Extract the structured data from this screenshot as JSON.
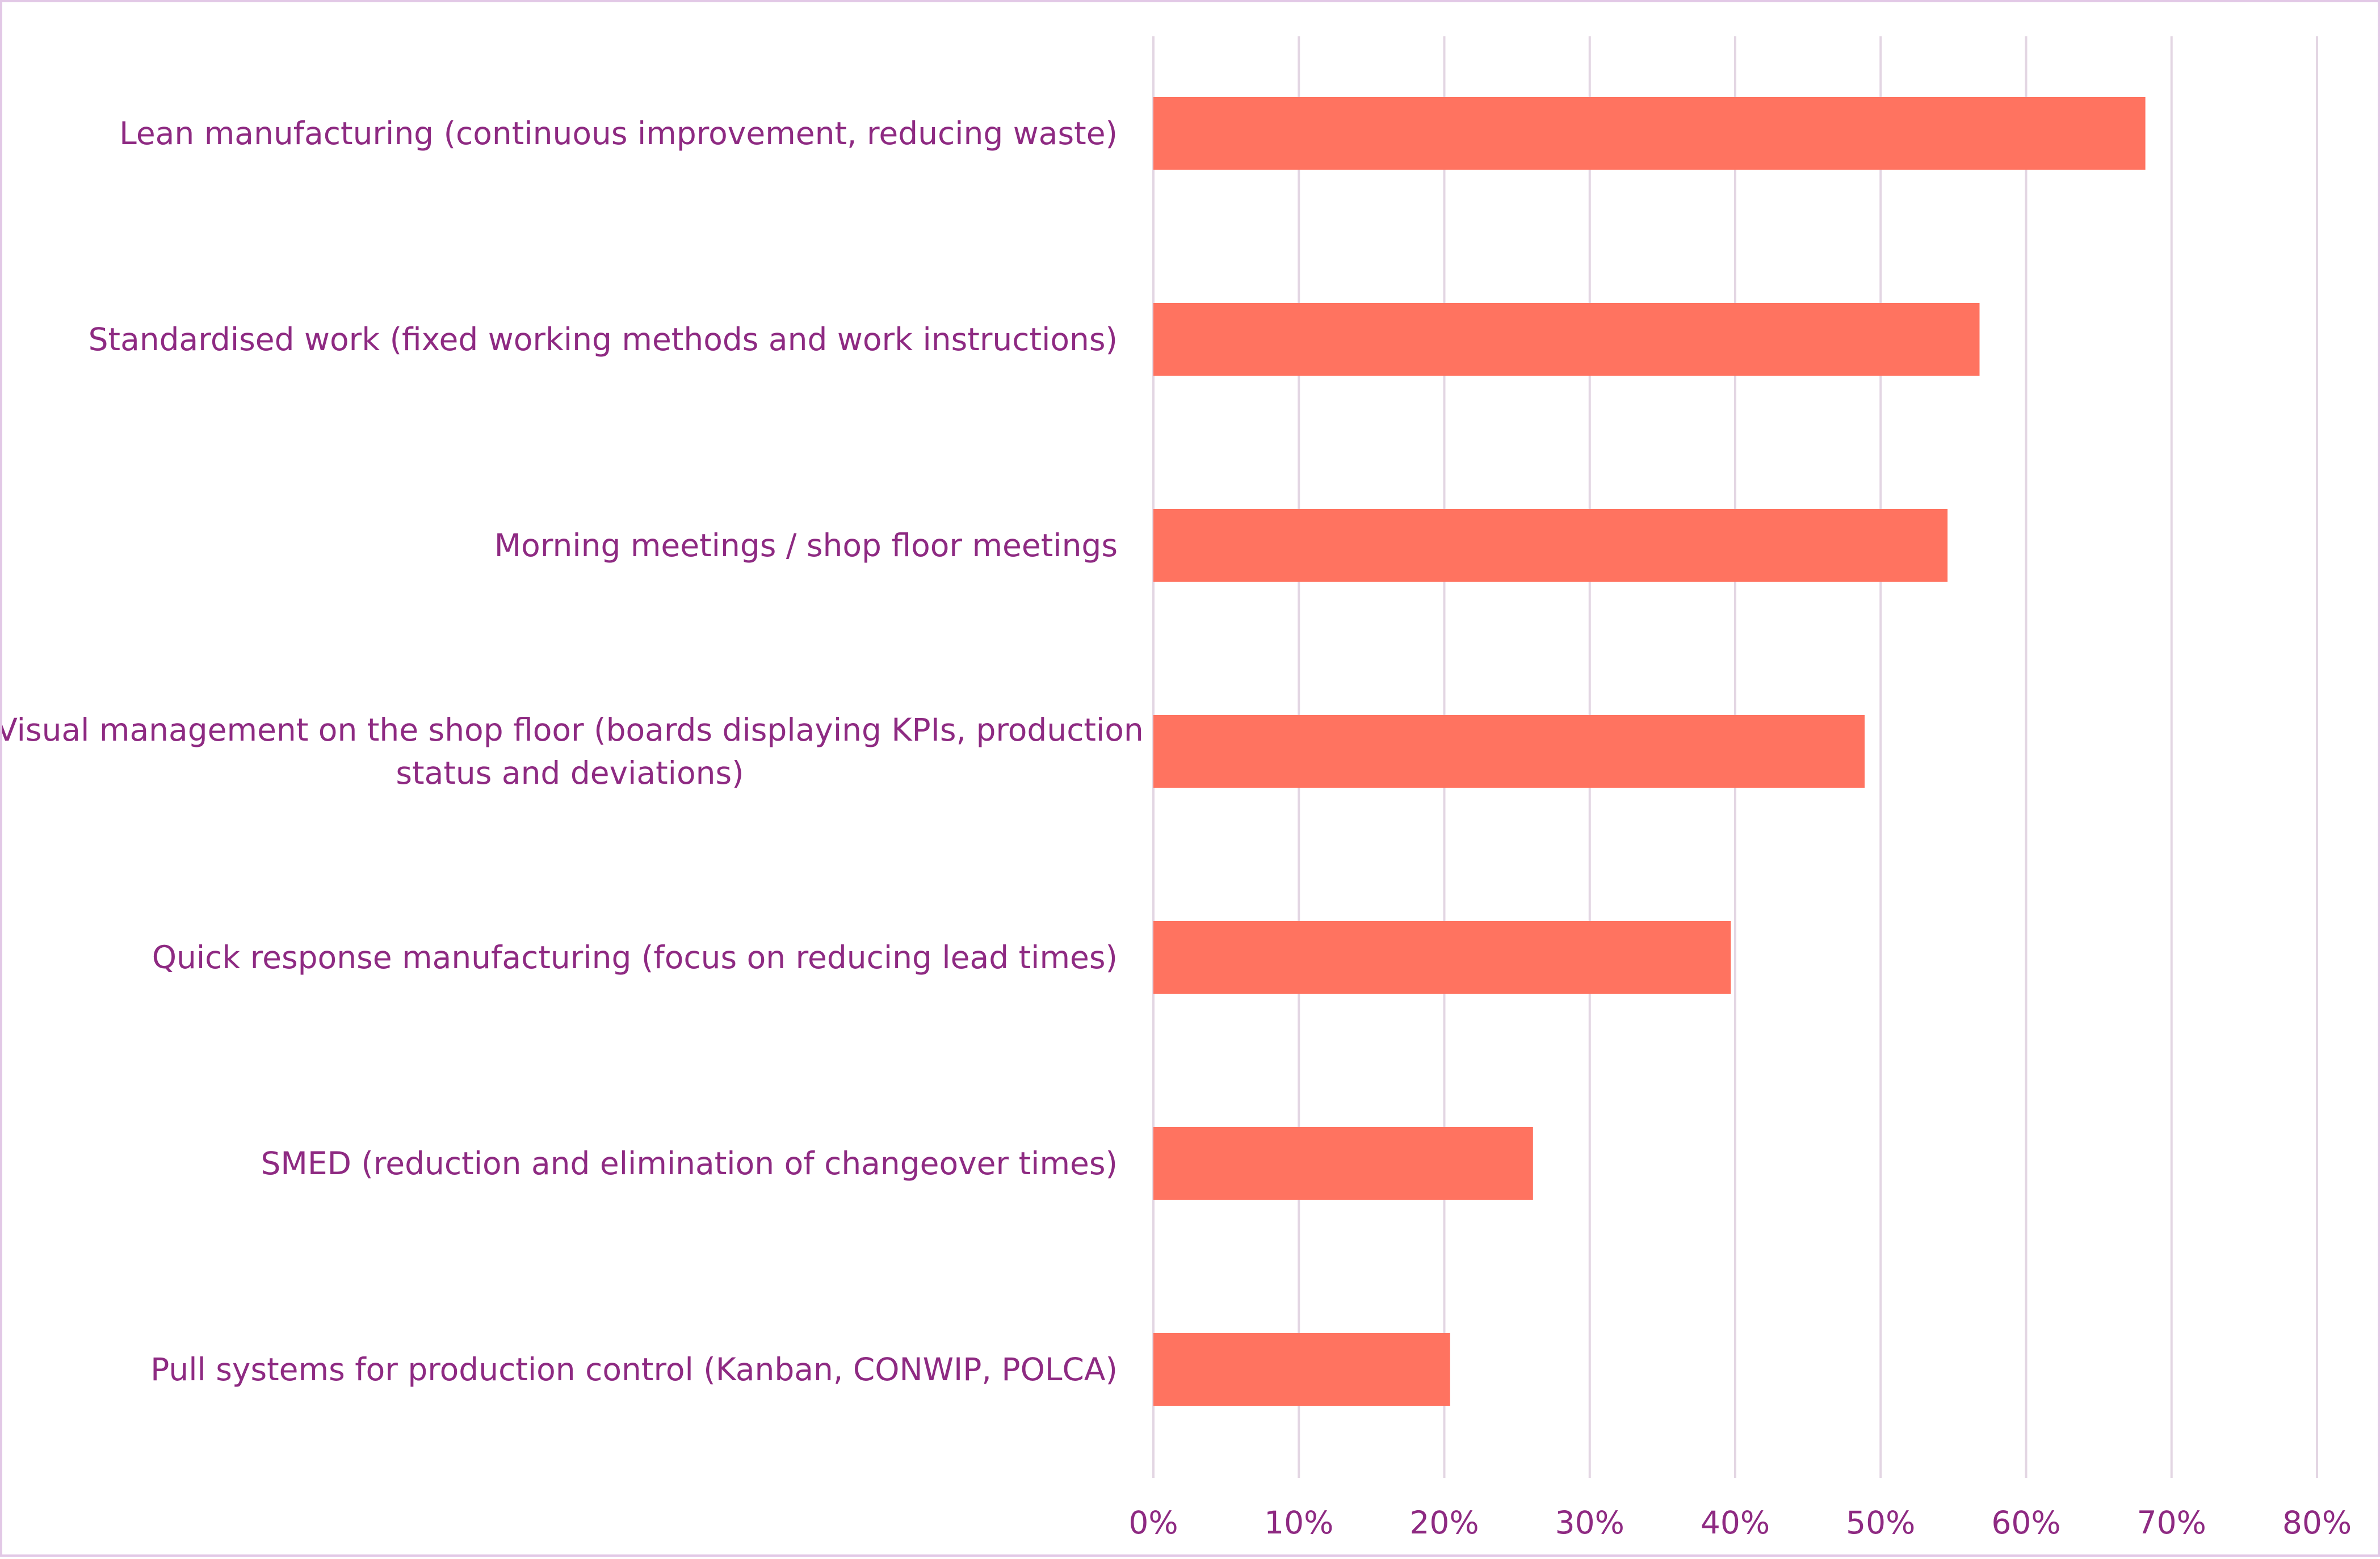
{
  "chart_data": {
    "type": "bar",
    "orientation": "horizontal",
    "title": "",
    "xlabel": "",
    "ylabel": "",
    "categories": [
      [
        "Lean manufacturing (continuous improvement, reducing waste)"
      ],
      [
        "Standardised work (fixed working methods and work instructions)"
      ],
      [
        "Morning meetings / shop floor meetings"
      ],
      [
        "Visual management on the shop floor (boards displaying KPIs, production",
        "status and deviations)"
      ],
      [
        "Quick response manufacturing (focus on reducing lead times)"
      ],
      [
        "SMED (reduction and elimination of changeover times)"
      ],
      [
        "Pull systems for production control (Kanban, CONWIP, POLCA)"
      ]
    ],
    "values": [
      68.2,
      56.8,
      54.6,
      48.9,
      39.7,
      26.1,
      20.4
    ],
    "xlim": [
      0,
      80
    ],
    "xticks": [
      0,
      10,
      20,
      30,
      40,
      50,
      60,
      70,
      80
    ],
    "tick_labels": [
      "0%",
      "10%",
      "20%",
      "30%",
      "40%",
      "50%",
      "60%",
      "70%",
      "80%"
    ],
    "grid": "vertical",
    "legend": "none",
    "bar_color": "#ff7360",
    "text_color": "#8e2a82",
    "grid_color": "#e3d6e3"
  }
}
